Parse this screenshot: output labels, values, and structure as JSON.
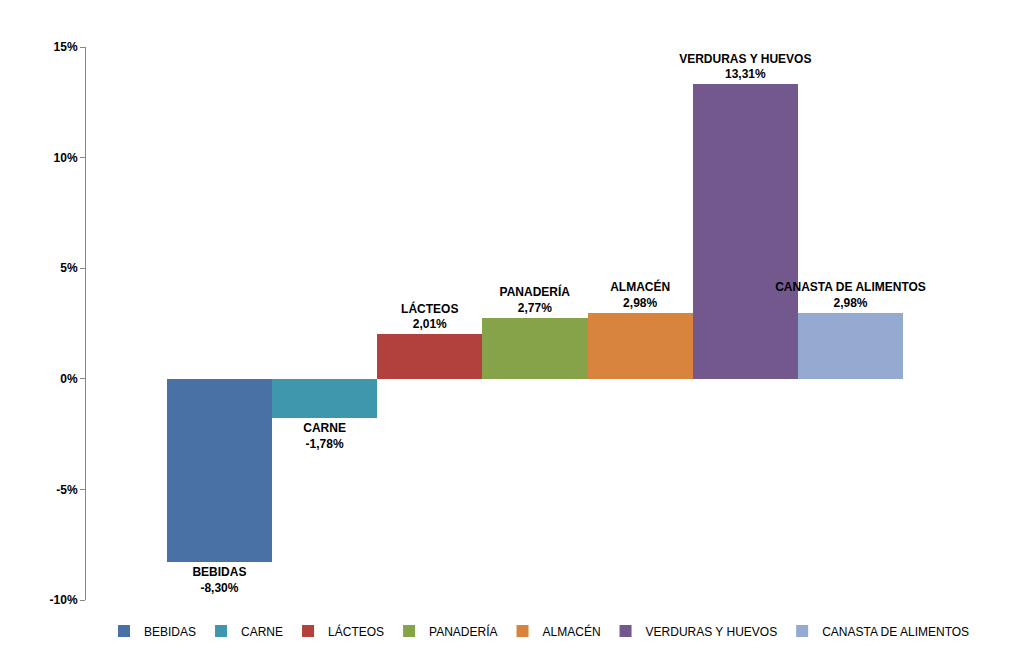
{
  "chart_data": {
    "type": "bar",
    "categories": [
      "BEBIDAS",
      "CARNE",
      "LÁCTEOS",
      "PANADERÍA",
      "ALMACÉN",
      "VERDURAS Y HUEVOS",
      "CANASTA DE ALIMENTOS"
    ],
    "values": [
      -8.3,
      -1.78,
      2.01,
      2.77,
      2.98,
      13.31,
      2.98
    ],
    "value_labels": [
      "-8,30%",
      "-1,78%",
      "2,01%",
      "2,77%",
      "2,98%",
      "13,31%",
      "2,98%"
    ],
    "colors": [
      "#4a71a6",
      "#3e97ad",
      "#b2403d",
      "#86a34a",
      "#d9843d",
      "#72588d",
      "#95aad1"
    ],
    "ylim": [
      -10,
      15
    ],
    "yticks": [
      {
        "value": -10,
        "label": "-10%"
      },
      {
        "value": -5,
        "label": "-5%"
      },
      {
        "value": 0,
        "label": "0%"
      },
      {
        "value": 5,
        "label": "5%"
      },
      {
        "value": 10,
        "label": "10%"
      },
      {
        "value": 15,
        "label": "15%"
      }
    ],
    "grid": false,
    "legend": "bottom",
    "data_labels": true,
    "tick_labels": "y"
  }
}
